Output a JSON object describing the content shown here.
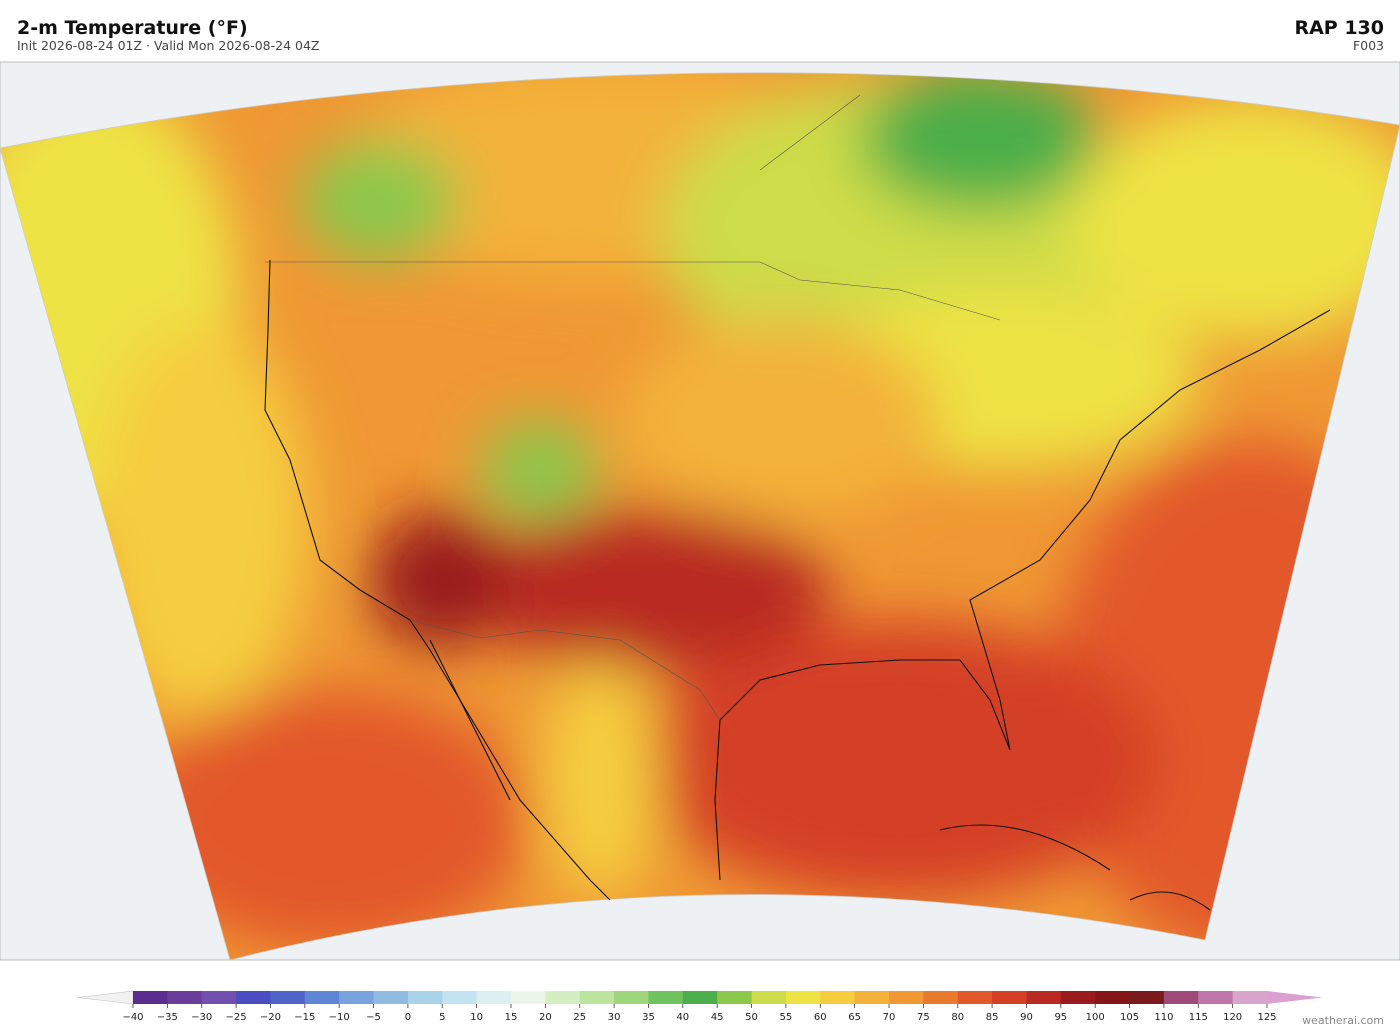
{
  "header": {
    "title": "2-m Temperature  (°F)",
    "subtitle": "Init 2026-08-24 01Z  ·  Valid Mon 2026-08-24 04Z",
    "model": "RAP  130",
    "forecast_hour": "F003"
  },
  "colorbar": {
    "ticks": [
      {
        "value": -40,
        "label": "−40"
      },
      {
        "value": -35,
        "label": "−35"
      },
      {
        "value": -30,
        "label": "−30"
      },
      {
        "value": -25,
        "label": "−25"
      },
      {
        "value": -20,
        "label": "−20"
      },
      {
        "value": -15,
        "label": "−15"
      },
      {
        "value": -10,
        "label": "−10"
      },
      {
        "value": -5,
        "label": "−5"
      },
      0,
      5,
      10,
      15,
      20,
      25,
      30,
      35,
      40,
      45,
      50,
      55,
      60,
      65,
      70,
      75,
      80,
      85,
      90,
      95,
      100,
      105,
      110,
      115,
      120,
      125
    ],
    "colors": [
      "#5b2d8e",
      "#6a3d9a",
      "#7350b0",
      "#4a4ec0",
      "#4f63c9",
      "#5f86d4",
      "#78a3dc",
      "#8fbce0",
      "#a8d3e8",
      "#c4e3f0",
      "#dcf0f2",
      "#e9f6e8",
      "#d4eec4",
      "#bde49c",
      "#9dd67c",
      "#6fc35e",
      "#4cae4a",
      "#8cc84b",
      "#cddc4a",
      "#eee344",
      "#f5cd3f",
      "#f3b23a",
      "#ef9834",
      "#e87a2e",
      "#e2582a",
      "#d43f26",
      "#b82a22",
      "#9a1b1d",
      "#841619",
      "#7a1a1c",
      "#9e4a7a",
      "#bf77aa",
      "#d8a6cc"
    ],
    "under_color": "#f2f2f2",
    "over_color": "#d9a0d0"
  },
  "credit": "weatherai.com"
}
